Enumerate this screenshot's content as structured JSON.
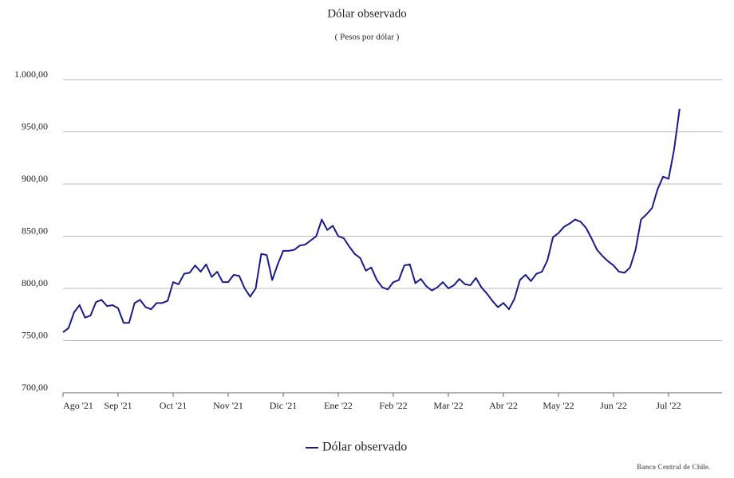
{
  "chart_data": {
    "type": "line",
    "title": "Dólar observado",
    "subtitle": "( Pesos por dólar )",
    "source": "Banco Central de Chile.",
    "categories": [
      "Ago '21",
      null,
      null,
      null,
      null,
      null,
      null,
      null,
      null,
      null,
      "Sep '21",
      null,
      null,
      null,
      null,
      null,
      null,
      null,
      null,
      null,
      "Oct '21",
      null,
      null,
      null,
      null,
      null,
      null,
      null,
      null,
      null,
      "Nov '21",
      null,
      null,
      null,
      null,
      null,
      null,
      null,
      null,
      null,
      "Dic '21",
      null,
      null,
      null,
      null,
      null,
      null,
      null,
      null,
      null,
      "Ene '22",
      null,
      null,
      null,
      null,
      null,
      null,
      null,
      null,
      null,
      "Feb '22",
      null,
      null,
      null,
      null,
      null,
      null,
      null,
      null,
      null,
      "Mar '22",
      null,
      null,
      null,
      null,
      null,
      null,
      null,
      null,
      null,
      "Abr '22",
      null,
      null,
      null,
      null,
      null,
      null,
      null,
      null,
      null,
      "May '22",
      null,
      null,
      null,
      null,
      null,
      null,
      null,
      null,
      null,
      "Jun '22",
      null,
      null,
      null,
      null,
      null,
      null,
      null,
      null,
      null,
      "Jul '22",
      null,
      null
    ],
    "series": [
      {
        "name": "Dólar observado",
        "color": "#1a1a8c",
        "values": [
          758,
          762,
          777,
          784,
          772,
          774,
          787,
          789,
          783,
          784,
          781,
          767,
          767,
          786,
          789,
          782,
          780,
          786,
          786,
          788,
          806,
          804,
          814,
          815,
          822,
          816,
          823,
          811,
          816,
          806,
          806,
          813,
          812,
          800,
          792,
          800,
          833,
          832,
          808,
          823,
          836,
          836,
          837,
          841,
          842,
          846,
          850,
          866,
          856,
          860,
          850,
          848,
          840,
          833,
          829,
          817,
          820,
          808,
          801,
          799,
          806,
          808,
          822,
          823,
          805,
          809,
          802,
          798,
          801,
          806,
          800,
          803,
          809,
          804,
          803,
          810,
          801,
          795,
          788,
          782,
          786,
          780,
          790,
          808,
          813,
          807,
          814,
          816,
          827,
          849,
          853,
          859,
          862,
          866,
          864,
          858,
          848,
          837,
          831,
          826,
          822,
          816,
          815,
          820,
          837,
          866,
          871,
          877,
          895,
          907,
          905,
          933,
          972
        ]
      }
    ],
    "ylim": [
      700,
      1000
    ],
    "yticks": [
      {
        "value": 700,
        "label": "700,00"
      },
      {
        "value": 750,
        "label": "750,00"
      },
      {
        "value": 800,
        "label": "800,00"
      },
      {
        "value": 850,
        "label": "850,00"
      },
      {
        "value": 900,
        "label": "900,00"
      },
      {
        "value": 950,
        "label": "950,00"
      },
      {
        "value": 1000,
        "label": "1.000,00"
      }
    ],
    "grid": true
  }
}
